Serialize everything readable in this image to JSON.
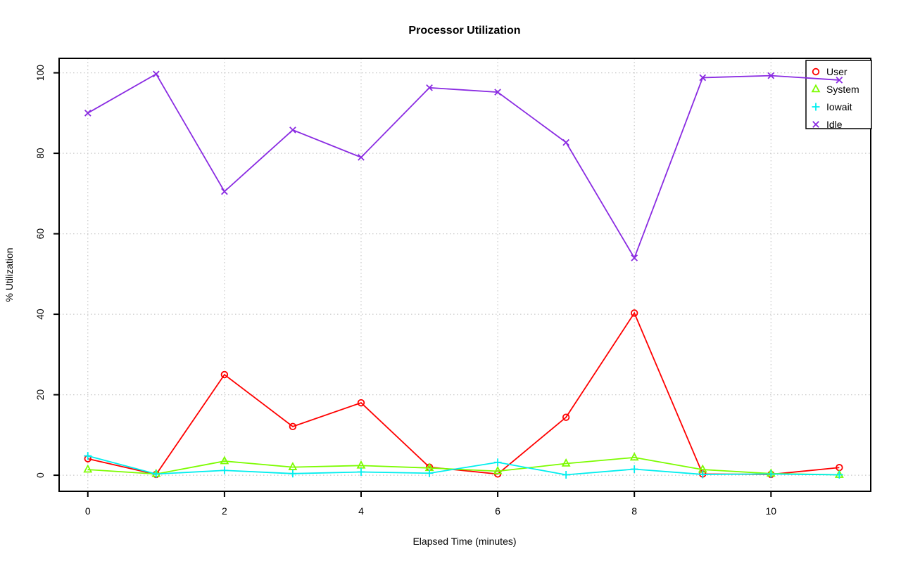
{
  "chart_data": {
    "type": "line",
    "title": "Processor Utilization",
    "xlabel": "Elapsed Time (minutes)",
    "ylabel": "% Utilization",
    "x": [
      0,
      1,
      2,
      3,
      4,
      5,
      6,
      7,
      8,
      9,
      10,
      11
    ],
    "series": [
      {
        "name": "User",
        "color": "#ff0000",
        "marker": "circle",
        "values": [
          4.1,
          0.2,
          25.0,
          12.1,
          18.0,
          2.0,
          0.3,
          14.4,
          40.3,
          0.3,
          0.2,
          1.9
        ]
      },
      {
        "name": "System",
        "color": "#7cfc00",
        "marker": "triangle",
        "values": [
          1.4,
          0.3,
          3.5,
          2.0,
          2.4,
          1.8,
          1.0,
          2.9,
          4.4,
          1.4,
          0.4,
          0.1
        ]
      },
      {
        "name": "Iowait",
        "color": "#00eeee",
        "marker": "plus",
        "values": [
          4.8,
          0.3,
          1.2,
          0.4,
          0.8,
          0.5,
          3.2,
          0.1,
          1.5,
          0.2,
          0.3,
          0.1
        ]
      },
      {
        "name": "Idle",
        "color": "#8a2be2",
        "marker": "x",
        "values": [
          90.0,
          99.7,
          70.5,
          85.8,
          79.0,
          96.3,
          95.2,
          82.7,
          54.0,
          98.8,
          99.3,
          98.2
        ]
      }
    ],
    "xticks": [
      "0",
      "2",
      "4",
      "6",
      "8",
      "10"
    ],
    "xtick_values": [
      0,
      2,
      4,
      6,
      8,
      10
    ],
    "yticks": [
      "0",
      "20",
      "40",
      "60",
      "80",
      "100"
    ],
    "ytick_values": [
      0,
      20,
      40,
      60,
      80,
      100
    ],
    "xlim": [
      -0.42,
      11.46
    ],
    "ylim": [
      -4.0,
      103.6
    ],
    "grid": true,
    "grid_style": "dotted",
    "legend_position": "top-right"
  },
  "colors": {
    "background": "#ffffff",
    "axis": "#000000",
    "grid": "#c8c8c8",
    "legend_border": "#000000",
    "legend_fill": "#ffffff"
  }
}
